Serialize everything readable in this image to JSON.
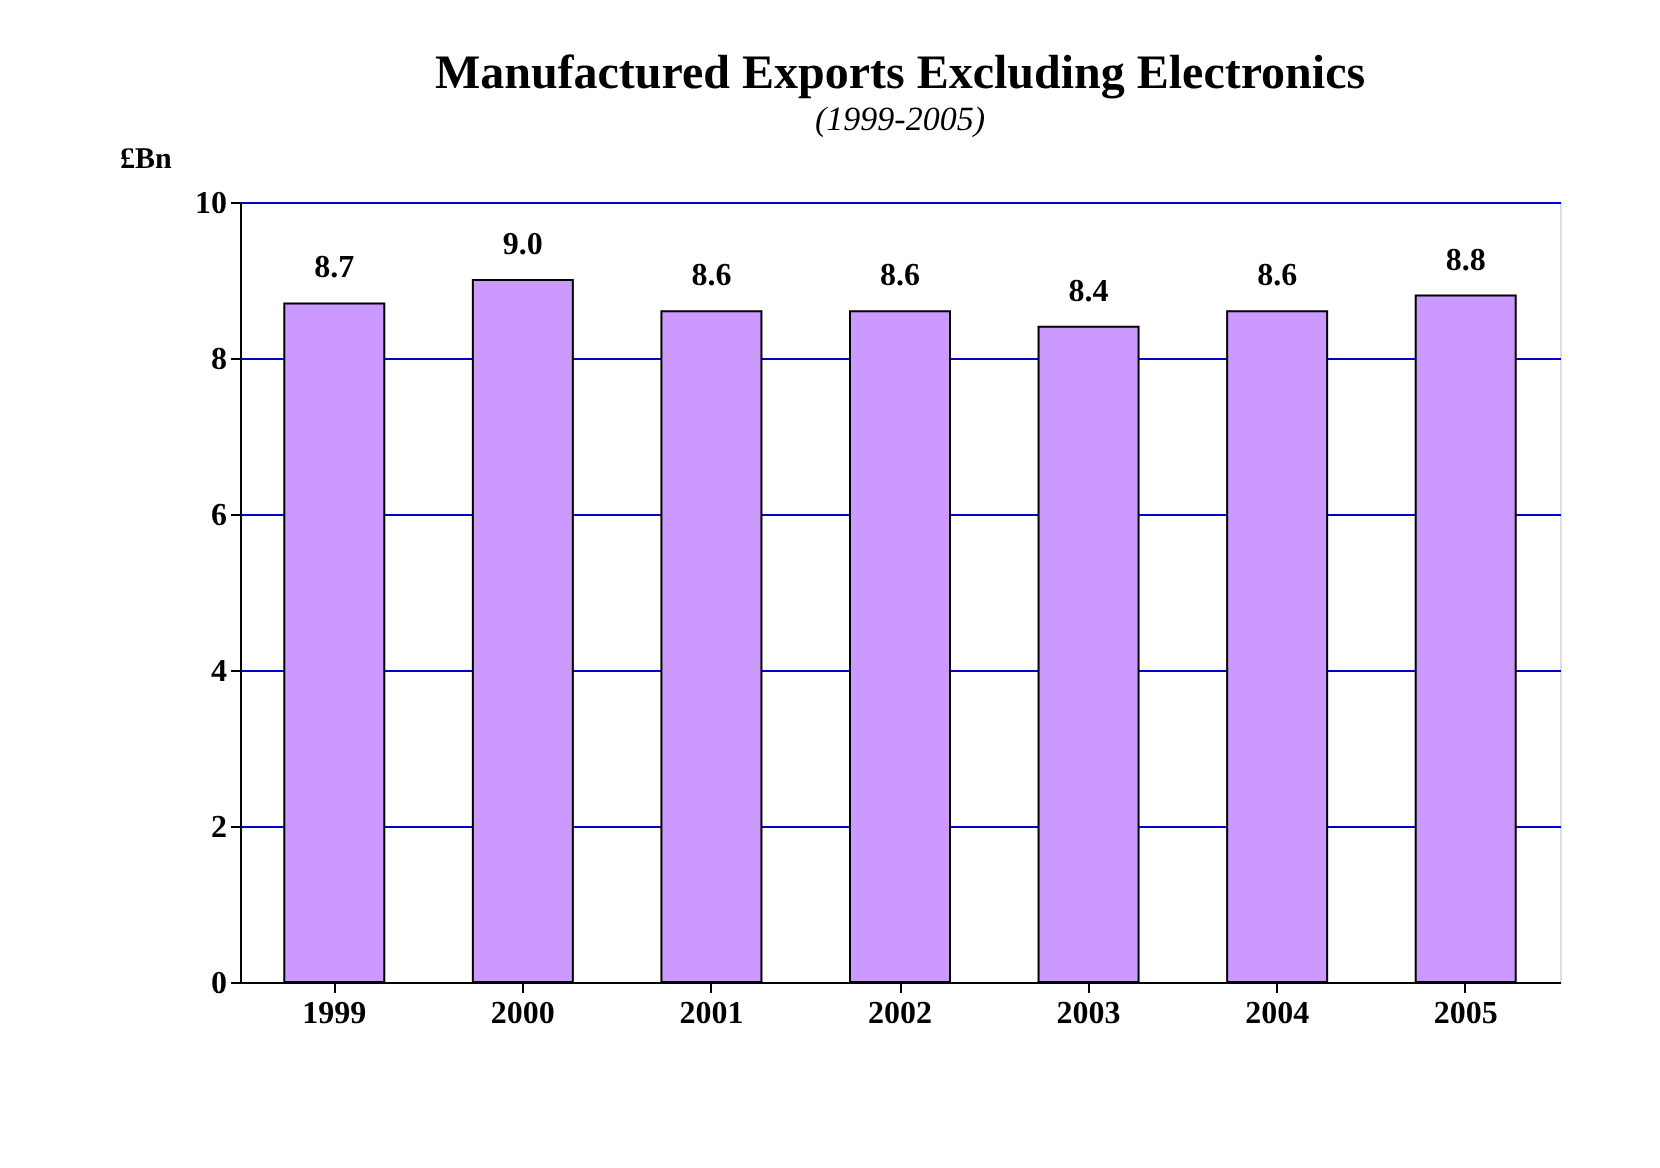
{
  "chart_data": {
    "type": "bar",
    "title": "Manufactured Exports Excluding Electronics",
    "subtitle": "(1999-2005)",
    "ylabel": "£Bn",
    "categories": [
      "1999",
      "2000",
      "2001",
      "2002",
      "2003",
      "2004",
      "2005"
    ],
    "values": [
      8.7,
      9.0,
      8.6,
      8.6,
      8.4,
      8.6,
      8.8
    ],
    "color": "#cc99ff",
    "ylim": [
      0,
      10
    ],
    "yticks": [
      0,
      2,
      4,
      6,
      8,
      10
    ],
    "grid": "y",
    "value_labels": [
      "8.7",
      "9.0",
      "8.6",
      "8.6",
      "8.4",
      "8.6",
      "8.8"
    ]
  }
}
